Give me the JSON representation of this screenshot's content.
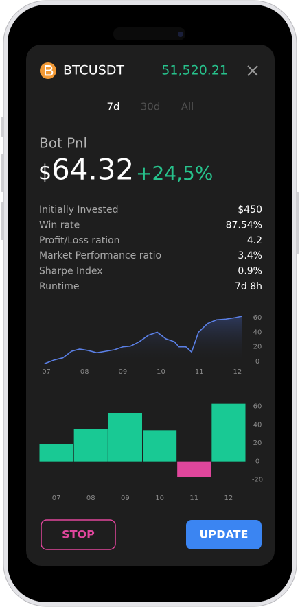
{
  "header": {
    "symbol": "BTCUSDT",
    "price": "51,520.21"
  },
  "tabs": [
    "7d",
    "30d",
    "All"
  ],
  "pnl": {
    "label": "Bot Pnl",
    "currency": "$",
    "amount": "64.32",
    "change": "+24,5%"
  },
  "stats": [
    [
      "Initially Invested",
      "$450"
    ],
    [
      "Win rate",
      "87.54%"
    ],
    [
      "Profit/Loss ration",
      "4.2"
    ],
    [
      "Market Performance ratio",
      "3.4%"
    ],
    [
      "Sharpe Index",
      "0.9%"
    ],
    [
      "Runtime",
      "7d 8h"
    ]
  ],
  "chart_data": [
    {
      "type": "line",
      "color": "#5b80e6",
      "x": [
        6.95,
        7.2,
        7.43,
        7.66,
        7.87,
        8.1,
        8.32,
        8.55,
        8.78,
        9.0,
        9.2,
        9.43,
        9.67,
        9.9,
        10.13,
        10.35,
        10.47,
        10.65,
        10.8,
        10.98,
        11.22,
        11.45,
        11.7,
        11.94,
        12.12
      ],
      "values": [
        -3,
        2,
        5,
        14,
        17,
        15,
        12,
        14,
        16,
        20,
        21,
        27,
        36,
        40,
        31,
        27,
        20,
        20,
        13,
        40,
        52,
        57,
        58,
        60,
        62
      ],
      "xlim": [
        6.9,
        12.2
      ],
      "ylim": [
        -4,
        62
      ],
      "xticks": [
        {
          "value": 7,
          "label": "07"
        },
        {
          "value": 8,
          "label": "08"
        },
        {
          "value": 9,
          "label": "09"
        },
        {
          "value": 10,
          "label": "10"
        },
        {
          "value": 11,
          "label": "11"
        },
        {
          "value": 12,
          "label": "12"
        }
      ],
      "yticks": [
        0,
        20,
        40,
        60
      ],
      "grid": false
    },
    {
      "type": "bar",
      "categories": [
        "07",
        "08",
        "09",
        "10",
        "11",
        "12"
      ],
      "values": [
        19,
        35,
        53,
        34,
        -17,
        63
      ],
      "colors": {
        "positive": "#19c994",
        "negative": "#e0469c"
      },
      "ylim": [
        -25,
        68
      ],
      "yticks": [
        60,
        40,
        20,
        0,
        -20
      ],
      "grid": false
    }
  ],
  "buttons": [
    "STOP",
    "UPDATE"
  ]
}
